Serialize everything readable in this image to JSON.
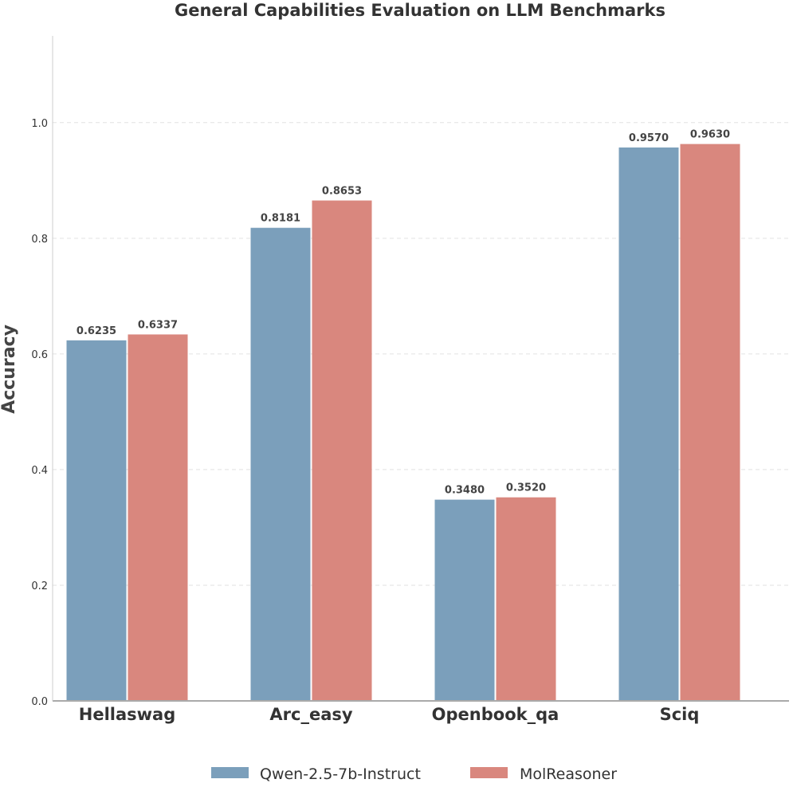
{
  "chart_data": {
    "type": "bar",
    "title": "General Capabilities Evaluation on LLM Benchmarks",
    "xlabel": "",
    "ylabel": "Accuracy",
    "categories": [
      "Hellaswag",
      "Arc_easy",
      "Openbook_qa",
      "Sciq"
    ],
    "series": [
      {
        "name": "Qwen-2.5-7b-Instruct",
        "values": [
          0.6235,
          0.8181,
          0.348,
          0.957
        ],
        "labels": [
          "0.6235",
          "0.8181",
          "0.3480",
          "0.9570"
        ],
        "color": "#7b9fbb"
      },
      {
        "name": "MolReasoner",
        "values": [
          0.6337,
          0.8653,
          0.352,
          0.963
        ],
        "labels": [
          "0.6337",
          "0.8653",
          "0.3520",
          "0.9630"
        ],
        "color": "#d9877e"
      }
    ],
    "yticks": [
      "0.0",
      "0.2",
      "0.4",
      "0.6",
      "0.8",
      "1.0"
    ],
    "ytick_values": [
      0.0,
      0.2,
      0.4,
      0.6,
      0.8,
      1.0
    ],
    "ylim": [
      0,
      1.15
    ],
    "grid": true,
    "legend_position": "bottom-center"
  }
}
